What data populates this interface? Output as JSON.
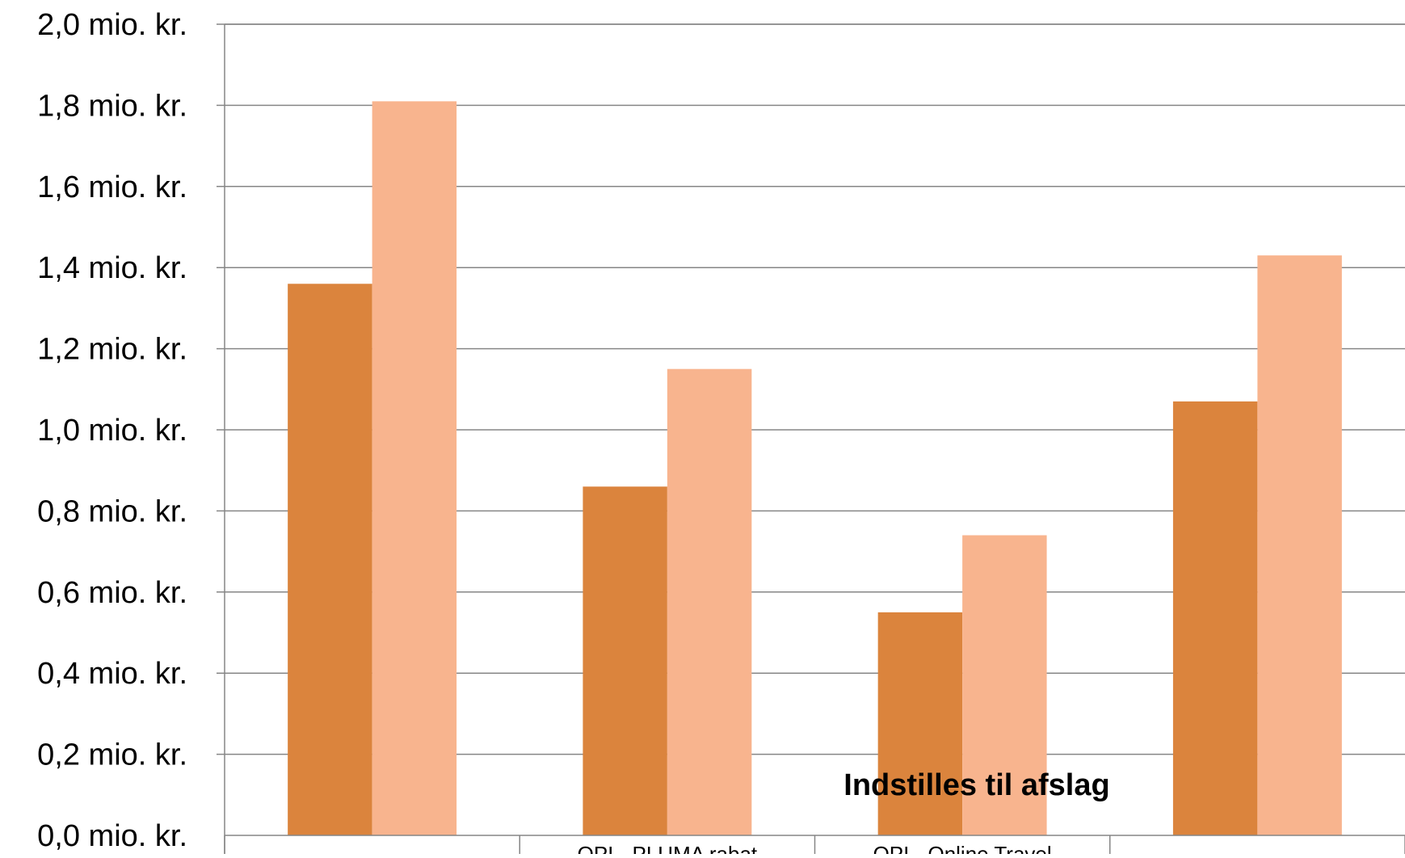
{
  "chart_data": {
    "type": "bar",
    "categories": [
      "",
      "OPI - PLUMA rabat",
      "OPI - Online Travel",
      ""
    ],
    "series": [
      {
        "values": [
          1.36,
          0.86,
          0.55,
          1.07
        ],
        "color": "#DB843D"
      },
      {
        "values": [
          1.81,
          1.15,
          0.74,
          1.43
        ],
        "color": "#F8B48E"
      }
    ],
    "yticks": [
      "0,0 mio. kr.",
      "0,2 mio. kr.",
      "0,4 mio. kr.",
      "0,6 mio. kr.",
      "0,8 mio. kr.",
      "1,0 mio. kr.",
      "1,2 mio. kr.",
      "1,4 mio. kr.",
      "1,6 mio. kr.",
      "1,8 mio. kr.",
      "2,0 mio. kr."
    ],
    "ylim": [
      0,
      2.0
    ],
    "grid": true,
    "annotation": "Indstilles til afslag",
    "title": "",
    "xlabel": "",
    "ylabel": ""
  }
}
